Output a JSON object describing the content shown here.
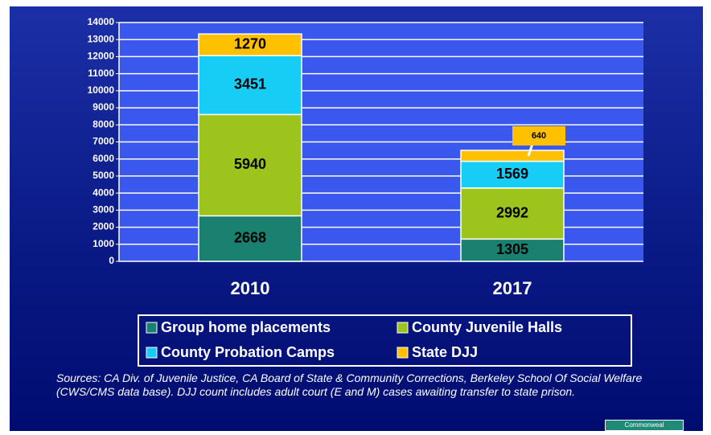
{
  "chart_data": {
    "type": "stacked-bar",
    "categories": [
      "2010",
      "2017"
    ],
    "series": [
      {
        "name": "Group home placements",
        "color": "#1a8070",
        "values": [
          2668,
          1305
        ]
      },
      {
        "name": "County Juvenile Halls",
        "color": "#9cc41c",
        "values": [
          5940,
          2992
        ]
      },
      {
        "name": "County Probation Camps",
        "color": "#18cdf5",
        "values": [
          3451,
          1569
        ]
      },
      {
        "name": "State DJJ",
        "color": "#ffc000",
        "values": [
          1270,
          640
        ]
      }
    ],
    "ylim": [
      0,
      14000
    ],
    "yticks": [
      0,
      1000,
      2000,
      3000,
      4000,
      5000,
      6000,
      7000,
      8000,
      9000,
      10000,
      11000,
      12000,
      13000,
      14000
    ],
    "grid": true,
    "source": "Sources: CA Div. of Juvenile Justice, CA Board of State & Community Corrections, Berkeley School Of Social Welfare (CWS/CMS data base). DJJ count includes adult court (E and  M) cases awaiting transfer to state prison.",
    "badge": "Commonweal"
  }
}
